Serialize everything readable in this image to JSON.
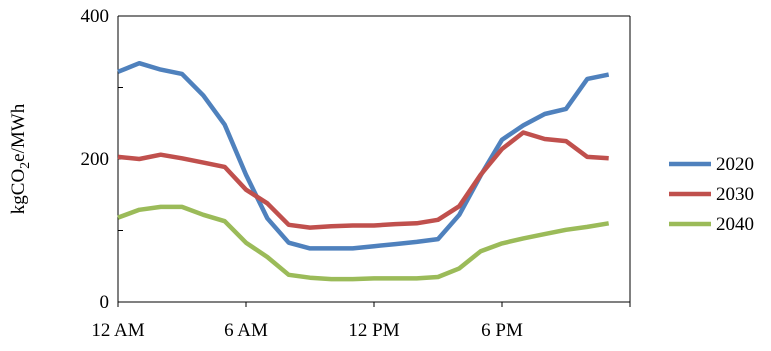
{
  "chart_data": {
    "type": "line",
    "title": "",
    "xlabel": "",
    "ylabel": {
      "pre": "kgCO",
      "sub": "2",
      "post": "e/MWh"
    },
    "ylim": [
      0,
      400
    ],
    "y_ticks": [
      0,
      200,
      400
    ],
    "x_hours": [
      0,
      1,
      2,
      3,
      4,
      5,
      6,
      7,
      8,
      9,
      10,
      11,
      12,
      13,
      14,
      15,
      16,
      17,
      18,
      19,
      20,
      21,
      22,
      23
    ],
    "xlim": [
      0,
      24
    ],
    "x_ticks": [
      {
        "hour": 0,
        "label": "12 AM"
      },
      {
        "hour": 6,
        "label": "6 AM"
      },
      {
        "hour": 12,
        "label": "12 PM"
      },
      {
        "hour": 18,
        "label": "6 PM"
      }
    ],
    "grid": false,
    "legend_position": "right",
    "series": [
      {
        "name": "2020",
        "color": "#4F81BD",
        "values": [
          322,
          334,
          325,
          319,
          289,
          248,
          178,
          117,
          83,
          75,
          75,
          75,
          78,
          81,
          84,
          88,
          122,
          177,
          227,
          247,
          263,
          270,
          312,
          318
        ]
      },
      {
        "name": "2030",
        "color": "#C0504D",
        "values": [
          203,
          200,
          206,
          201,
          195,
          189,
          157,
          138,
          108,
          104,
          106,
          107,
          107,
          109,
          110,
          115,
          134,
          178,
          214,
          237,
          228,
          225,
          203,
          201
        ]
      },
      {
        "name": "2040",
        "color": "#9BBB59",
        "values": [
          118,
          129,
          133,
          133,
          122,
          113,
          83,
          63,
          38,
          34,
          32,
          32,
          33,
          33,
          33,
          35,
          47,
          71,
          82,
          89,
          95,
          101,
          105,
          110
        ]
      }
    ]
  }
}
